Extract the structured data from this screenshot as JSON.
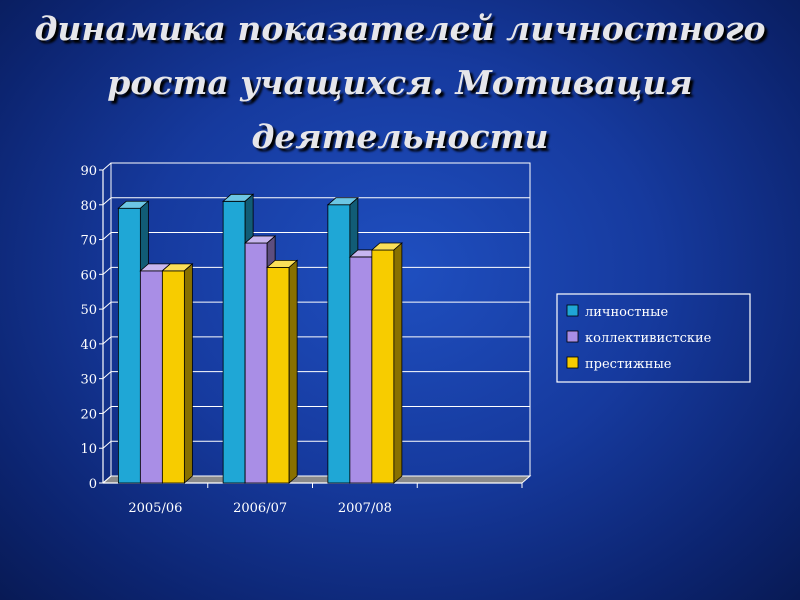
{
  "title_lines": [
    "динамика показателей личностного",
    "роста учащихся. Мотивация",
    "деятельности"
  ],
  "colors": {
    "background": "#163a9e",
    "axis": "#ffffff",
    "grid": "#ffffff",
    "series": [
      "#1fa7d6",
      "#a98ee6",
      "#f7cc00"
    ]
  },
  "chart_data": {
    "type": "bar",
    "title": "",
    "xlabel": "",
    "ylabel": "",
    "categories": [
      "2005/06",
      "2006/07",
      "2007/08",
      ""
    ],
    "ylim": [
      0,
      90
    ],
    "yticks": [
      0,
      10,
      20,
      30,
      40,
      50,
      60,
      70,
      80,
      90
    ],
    "grid": true,
    "legend_position": "right",
    "series": [
      {
        "name": "личностные",
        "values": [
          79,
          81,
          80,
          null
        ]
      },
      {
        "name": "коллективистские",
        "values": [
          61,
          69,
          65,
          null
        ]
      },
      {
        "name": "престижные",
        "values": [
          61,
          62,
          67,
          null
        ]
      }
    ]
  }
}
